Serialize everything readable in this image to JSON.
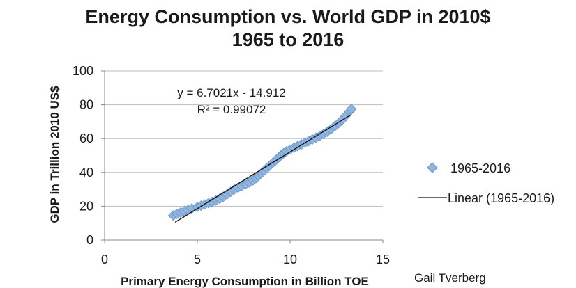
{
  "chart_data": {
    "type": "scatter",
    "title": "Energy Consumption vs. World GDP in 2010$",
    "subtitle": "1965 to 2016",
    "xlabel": "Primary Energy Consumption in Billion TOE",
    "ylabel": "GDP in Trillion 2010 US$",
    "xlim": [
      0,
      15
    ],
    "ylim": [
      0,
      100
    ],
    "x_ticks": [
      "0",
      "5",
      "10",
      "15"
    ],
    "y_ticks": [
      "0",
      "20",
      "40",
      "60",
      "80",
      "100"
    ],
    "grid": "horizontal",
    "legend_position": "right",
    "series": [
      {
        "name": "1965-2016",
        "marker": "diamond",
        "color": "#8fb4de",
        "points": [
          [
            3.7,
            14.5
          ],
          [
            3.9,
            15.5
          ],
          [
            4.1,
            16.3
          ],
          [
            4.3,
            17.1
          ],
          [
            4.5,
            17.8
          ],
          [
            4.7,
            18.6
          ],
          [
            5.0,
            19.5
          ],
          [
            5.2,
            20.3
          ],
          [
            5.4,
            21.0
          ],
          [
            5.6,
            21.8
          ],
          [
            5.8,
            22.5
          ],
          [
            6.0,
            23.4
          ],
          [
            6.2,
            24.4
          ],
          [
            6.4,
            25.6
          ],
          [
            6.6,
            27.0
          ],
          [
            6.8,
            28.5
          ],
          [
            7.0,
            30.0
          ],
          [
            7.2,
            31.0
          ],
          [
            7.4,
            32.0
          ],
          [
            7.6,
            33.0
          ],
          [
            7.8,
            34.0
          ],
          [
            8.0,
            35.3
          ],
          [
            8.15,
            36.5
          ],
          [
            8.3,
            38.0
          ],
          [
            8.45,
            39.5
          ],
          [
            8.6,
            41.0
          ],
          [
            8.75,
            42.5
          ],
          [
            8.9,
            44.0
          ],
          [
            9.05,
            45.5
          ],
          [
            9.2,
            47.0
          ],
          [
            9.35,
            48.5
          ],
          [
            9.5,
            50.0
          ],
          [
            9.65,
            51.3
          ],
          [
            9.8,
            52.5
          ],
          [
            10.0,
            53.5
          ],
          [
            10.2,
            54.5
          ],
          [
            10.4,
            55.5
          ],
          [
            10.6,
            56.5
          ],
          [
            10.8,
            57.5
          ],
          [
            11.0,
            58.5
          ],
          [
            11.2,
            59.5
          ],
          [
            11.4,
            60.5
          ],
          [
            11.6,
            61.5
          ],
          [
            11.8,
            62.7
          ],
          [
            12.0,
            64.0
          ],
          [
            12.2,
            65.5
          ],
          [
            12.4,
            67.2
          ],
          [
            12.6,
            69.0
          ],
          [
            12.8,
            71.0
          ],
          [
            13.0,
            73.5
          ],
          [
            13.2,
            76.0
          ],
          [
            13.3,
            77.5
          ]
        ]
      },
      {
        "name": "Linear (1965-2016)",
        "type": "trendline",
        "color": "#111111",
        "slope": 6.7021,
        "intercept": -14.912,
        "x_range": [
          3.8,
          13.3
        ]
      }
    ],
    "annotations": {
      "equation": "y = 6.7021x - 14.912",
      "r_squared": "R² = 0.99072"
    },
    "author": "Gail Tverberg"
  }
}
